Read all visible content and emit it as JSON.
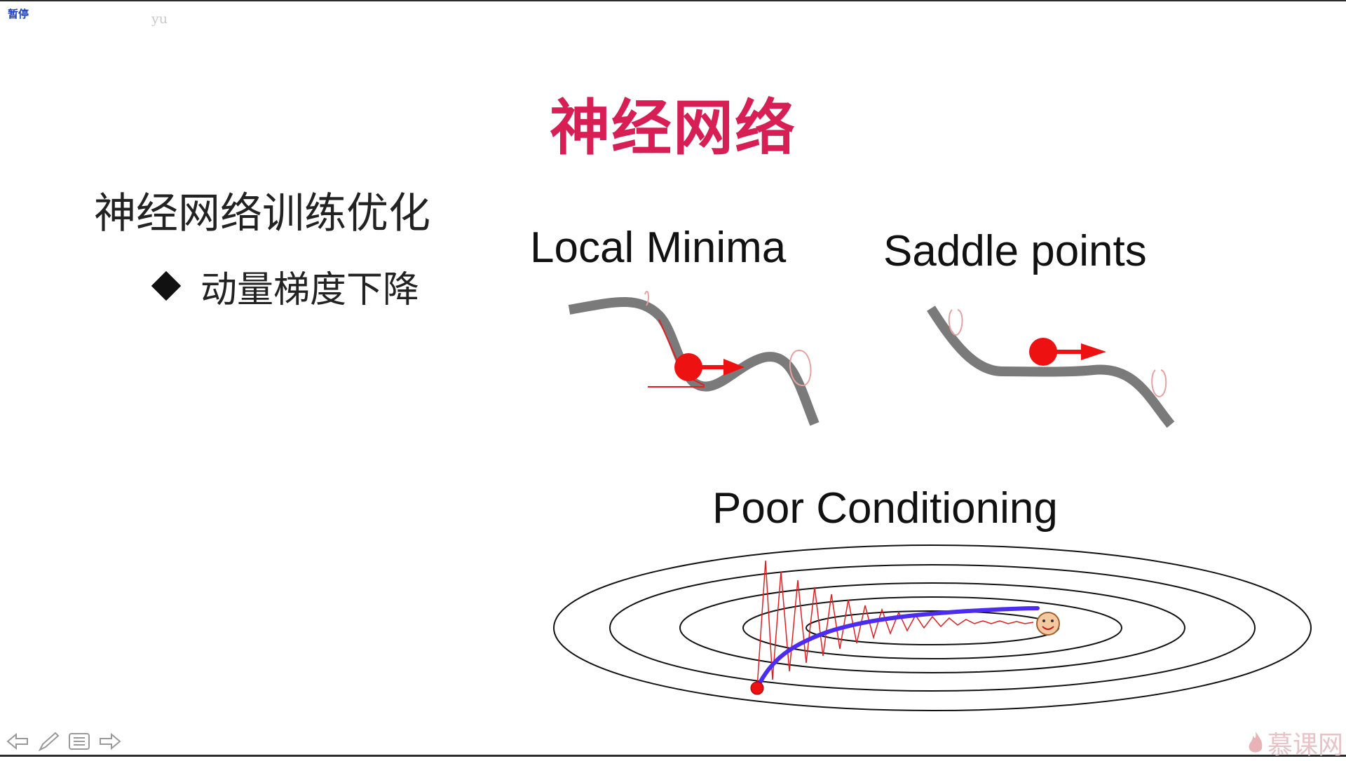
{
  "overlay": {
    "pause_label": "暂停",
    "watermark_top": "yu"
  },
  "slide": {
    "title": "神经网络",
    "section_heading": "神经网络训练优化",
    "bullets": [
      {
        "text": "动量梯度下降"
      }
    ]
  },
  "figures": {
    "local_minima": "Local Minima",
    "saddle_points": "Saddle points",
    "poor_conditioning": "Poor Conditioning"
  },
  "colors": {
    "title": "#d71f55",
    "curve": "#7a7a7a",
    "ball": "#ee1111",
    "momentum_path": "#4b2cf0",
    "sgd_path": "#e02020"
  },
  "player_controls": [
    {
      "name": "prev-arrow-icon"
    },
    {
      "name": "pen-icon"
    },
    {
      "name": "menu-icon"
    },
    {
      "name": "next-arrow-icon"
    }
  ],
  "brand": {
    "text": "慕课网"
  }
}
